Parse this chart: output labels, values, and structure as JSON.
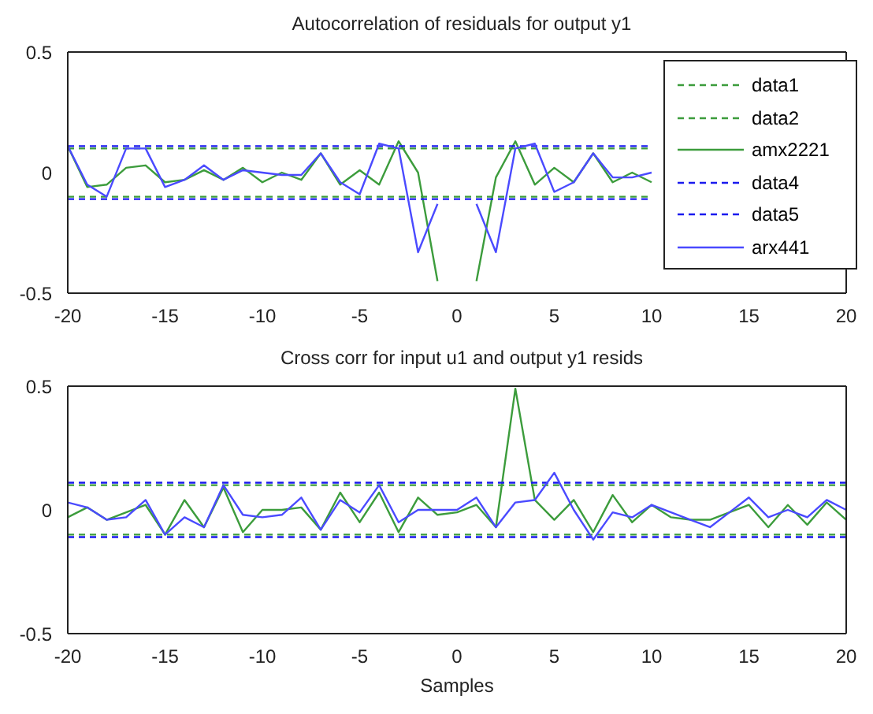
{
  "chart_data": [
    {
      "type": "line",
      "title": "Autocorrelation of residuals for output y1",
      "xlim": [
        -20,
        20
      ],
      "xticks": [
        -20,
        -15,
        -10,
        -5,
        0,
        5,
        10,
        15,
        20
      ],
      "ylim": [
        -0.5,
        0.5
      ],
      "yticks": [
        -0.5,
        0,
        0.5
      ],
      "grid": false,
      "legend": "top right",
      "series": [
        {
          "name": "data1",
          "color": "#3c9c3c",
          "line_style": "dashed",
          "x": [
            -20,
            10
          ],
          "values": [
            0.1,
            0.1
          ]
        },
        {
          "name": "data2",
          "color": "#3c9c3c",
          "line_style": "dashed",
          "x": [
            -20,
            10
          ],
          "values": [
            -0.1,
            -0.1
          ]
        },
        {
          "name": "amx2221",
          "color": "#3c9c3c",
          "line_style": "solid",
          "x": [
            -20,
            -19,
            -18,
            -17,
            -16,
            -15,
            -14,
            -13,
            -12,
            -11,
            -10,
            -9,
            -8,
            -7,
            -6,
            -5,
            -4,
            -3,
            -2,
            -1,
            0,
            1,
            2,
            3,
            4,
            5,
            6,
            7,
            8,
            9,
            10
          ],
          "values": [
            0.11,
            -0.06,
            -0.05,
            0.02,
            0.03,
            -0.04,
            -0.03,
            0.01,
            -0.03,
            0.02,
            -0.04,
            0.0,
            -0.03,
            0.08,
            -0.05,
            0.01,
            -0.05,
            0.13,
            0.0,
            -0.45,
            null,
            -0.45,
            -0.02,
            0.13,
            -0.05,
            0.02,
            -0.04,
            0.08,
            -0.04,
            0.0,
            -0.04
          ]
        },
        {
          "name": "data4",
          "color": "#1a1aee",
          "line_style": "dashed",
          "x": [
            -20,
            10
          ],
          "values": [
            0.11,
            0.11
          ]
        },
        {
          "name": "data5",
          "color": "#1a1aee",
          "line_style": "dashed",
          "x": [
            -20,
            10
          ],
          "values": [
            -0.11,
            -0.11
          ]
        },
        {
          "name": "arx441",
          "color": "#4a4aff",
          "line_style": "solid",
          "x": [
            -20,
            -19,
            -18,
            -17,
            -16,
            -15,
            -14,
            -13,
            -12,
            -11,
            -10,
            -9,
            -8,
            -7,
            -6,
            -5,
            -4,
            -3,
            -2,
            -1,
            0,
            1,
            2,
            3,
            4,
            5,
            6,
            7,
            8,
            9,
            10
          ],
          "values": [
            0.11,
            -0.05,
            -0.1,
            0.1,
            0.1,
            -0.06,
            -0.03,
            0.03,
            -0.03,
            0.01,
            0.0,
            -0.01,
            -0.01,
            0.08,
            -0.04,
            -0.09,
            0.12,
            0.1,
            -0.33,
            -0.13,
            null,
            -0.13,
            -0.33,
            0.1,
            0.12,
            -0.08,
            -0.04,
            0.08,
            -0.02,
            -0.02,
            0.0
          ]
        }
      ]
    },
    {
      "type": "line",
      "title": "Cross corr for input u1 and output y1 resids",
      "xlabel": "Samples",
      "xlim": [
        -20,
        20
      ],
      "xticks": [
        -20,
        -15,
        -10,
        -5,
        0,
        5,
        10,
        15,
        20
      ],
      "ylim": [
        -0.5,
        0.5
      ],
      "yticks": [
        -0.5,
        0,
        0.5
      ],
      "grid": false,
      "series": [
        {
          "color": "#3c9c3c",
          "line_style": "dashed",
          "x": [
            -20,
            20
          ],
          "values": [
            0.1,
            0.1
          ]
        },
        {
          "color": "#3c9c3c",
          "line_style": "dashed",
          "x": [
            -20,
            20
          ],
          "values": [
            -0.1,
            -0.1
          ]
        },
        {
          "color": "#3c9c3c",
          "line_style": "solid",
          "x": [
            -20,
            -19,
            -18,
            -17,
            -16,
            -15,
            -14,
            -13,
            -12,
            -11,
            -10,
            -9,
            -8,
            -7,
            -6,
            -5,
            -4,
            -3,
            -2,
            -1,
            0,
            1,
            2,
            3,
            4,
            5,
            6,
            7,
            8,
            9,
            10,
            11,
            12,
            13,
            14,
            15,
            16,
            17,
            18,
            19,
            20
          ],
          "values": [
            -0.03,
            0.01,
            -0.04,
            -0.01,
            0.02,
            -0.1,
            0.04,
            -0.07,
            0.09,
            -0.09,
            0.0,
            0.0,
            0.01,
            -0.08,
            0.07,
            -0.05,
            0.07,
            -0.09,
            0.05,
            -0.02,
            -0.01,
            0.02,
            -0.07,
            0.49,
            0.04,
            -0.04,
            0.04,
            -0.09,
            0.06,
            -0.05,
            0.02,
            -0.03,
            -0.04,
            -0.04,
            -0.01,
            0.02,
            -0.07,
            0.02,
            -0.06,
            0.03,
            -0.04
          ]
        },
        {
          "color": "#1a1aee",
          "line_style": "dashed",
          "x": [
            -20,
            20
          ],
          "values": [
            0.11,
            0.11
          ]
        },
        {
          "color": "#1a1aee",
          "line_style": "dashed",
          "x": [
            -20,
            20
          ],
          "values": [
            -0.11,
            -0.11
          ]
        },
        {
          "color": "#4a4aff",
          "line_style": "solid",
          "x": [
            -20,
            -19,
            -18,
            -17,
            -16,
            -15,
            -14,
            -13,
            -12,
            -11,
            -10,
            -9,
            -8,
            -7,
            -6,
            -5,
            -4,
            -3,
            -2,
            -1,
            0,
            1,
            2,
            3,
            4,
            5,
            6,
            7,
            8,
            9,
            10,
            11,
            12,
            13,
            14,
            15,
            16,
            17,
            18,
            19,
            20
          ],
          "values": [
            0.03,
            0.01,
            -0.04,
            -0.03,
            0.04,
            -0.1,
            -0.03,
            -0.07,
            0.1,
            -0.02,
            -0.03,
            -0.02,
            0.05,
            -0.08,
            0.04,
            -0.01,
            0.1,
            -0.05,
            0.0,
            0.0,
            0.0,
            0.05,
            -0.07,
            0.03,
            0.04,
            0.15,
            0.0,
            -0.12,
            -0.01,
            -0.03,
            0.02,
            -0.01,
            -0.04,
            -0.07,
            -0.01,
            0.05,
            -0.03,
            0.0,
            -0.03,
            0.04,
            0.0
          ]
        }
      ]
    }
  ]
}
